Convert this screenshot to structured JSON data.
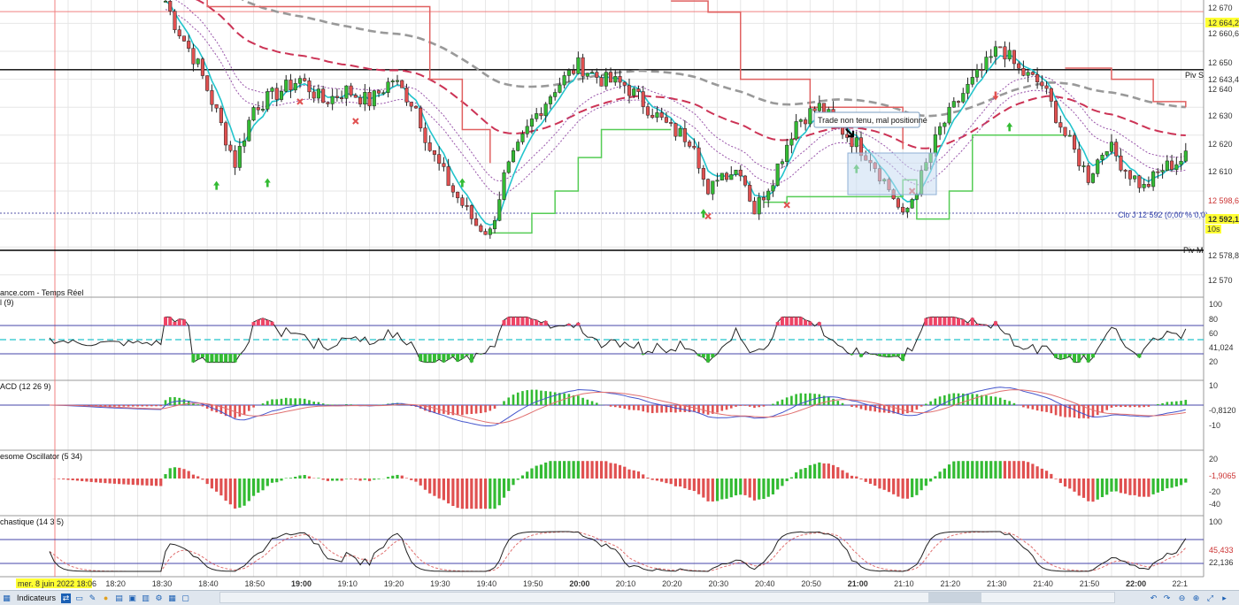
{
  "colors": {
    "bull": "#33bb33",
    "bear": "#e05050",
    "grid": "#e6e6e6",
    "ma_cyan": "#22c4cc",
    "ma_grey": "#999999",
    "ma_red": "#cc3355",
    "trail_red": "#e06060",
    "trail_green": "#55cc55"
  },
  "source_label": "ance.com - Temps Réel",
  "price_panel": {
    "axis_ticks": [
      "12 670",
      "12 660,6",
      "12 650",
      "12 643,4",
      "12 640",
      "12 630",
      "12 620",
      "12 610",
      "12 598,6",
      "12 592,1",
      "12 578,8",
      "12 570"
    ],
    "current_price": "12 592,1",
    "top_price_badge": "12 664,2",
    "timer_badge": "10s",
    "piv_s_label": "Piv S",
    "piv_m_label": "Piv M",
    "clo_label": "Clo J 12 592 (0,00 % 0,0)",
    "annotation": "Trade non tenu, mal positionné"
  },
  "panels": [
    {
      "name": "rsi",
      "label": "l (9)",
      "ticks": [
        "100",
        "80",
        "60",
        "41,024",
        "20"
      ]
    },
    {
      "name": "macd",
      "label": "ACD (12 26 9)",
      "ticks": [
        "10",
        "-0,8120",
        "-10"
      ]
    },
    {
      "name": "awesome",
      "label": "esome Oscillator (5 34)",
      "ticks": [
        "20",
        "-1,9065",
        "-20",
        "-40"
      ]
    },
    {
      "name": "stoch",
      "label": "chastique (14 3 5)",
      "ticks": [
        "100",
        "45,433",
        "22,136"
      ]
    }
  ],
  "time_axis": {
    "cursor_label": "mer. 8 juin 2022 18:06",
    "labels": [
      "18:20",
      "18:30",
      "18:40",
      "18:50",
      "19:00",
      "19:10",
      "19:20",
      "19:30",
      "19:40",
      "19:50",
      "20:00",
      "20:10",
      "20:20",
      "20:30",
      "20:40",
      "20:50",
      "21:00",
      "21:10",
      "21:20",
      "21:30",
      "21:40",
      "21:50",
      "22:00",
      "22:1"
    ]
  },
  "toolbar": {
    "indicators_label": "Indicateurs"
  },
  "chart_data": {
    "type": "candlestick",
    "x_range": [
      "18:06",
      "22:11"
    ],
    "ylim": [
      12570,
      12672
    ],
    "pivots": {
      "Piv S": 12643.4,
      "Piv M": 12578.8
    },
    "key_prices": [
      12664.2,
      12660.6,
      12643.4,
      12598.6,
      12592.1,
      12578.8
    ],
    "anchors": [
      [
        "18:31",
        12668
      ],
      [
        "18:33",
        12660
      ],
      [
        "18:38",
        12645
      ],
      [
        "18:42",
        12628
      ],
      [
        "18:46",
        12610
      ],
      [
        "18:50",
        12630
      ],
      [
        "18:56",
        12636
      ],
      [
        "19:00",
        12640
      ],
      [
        "19:05",
        12632
      ],
      [
        "19:10",
        12636
      ],
      [
        "19:15",
        12632
      ],
      [
        "19:20",
        12640
      ],
      [
        "19:25",
        12630
      ],
      [
        "19:28",
        12615
      ],
      [
        "19:33",
        12600
      ],
      [
        "19:38",
        12588
      ],
      [
        "19:41",
        12585
      ],
      [
        "19:44",
        12605
      ],
      [
        "19:50",
        12625
      ],
      [
        "19:55",
        12637
      ],
      [
        "20:00",
        12645
      ],
      [
        "20:05",
        12640
      ],
      [
        "20:10",
        12638
      ],
      [
        "20:15",
        12630
      ],
      [
        "20:20",
        12622
      ],
      [
        "20:25",
        12618
      ],
      [
        "20:28",
        12597
      ],
      [
        "20:30",
        12606
      ],
      [
        "20:35",
        12608
      ],
      [
        "20:38",
        12593
      ],
      [
        "20:42",
        12605
      ],
      [
        "20:47",
        12625
      ],
      [
        "20:52",
        12630
      ],
      [
        "20:58",
        12620
      ],
      [
        "21:03",
        12612
      ],
      [
        "21:08",
        12598
      ],
      [
        "21:10",
        12590
      ],
      [
        "21:14",
        12605
      ],
      [
        "21:18",
        12622
      ],
      [
        "21:23",
        12635
      ],
      [
        "21:28",
        12645
      ],
      [
        "21:31",
        12652
      ],
      [
        "21:35",
        12643
      ],
      [
        "21:40",
        12638
      ],
      [
        "21:45",
        12620
      ],
      [
        "21:50",
        12605
      ],
      [
        "21:54",
        12617
      ],
      [
        "21:58",
        12608
      ],
      [
        "22:02",
        12601
      ],
      [
        "22:06",
        12608
      ],
      [
        "22:11",
        12612
      ]
    ],
    "rsi_ylim": [
      0,
      100
    ],
    "rsi_last": 41.024,
    "macd_last": -0.812,
    "ao_last": -1.9065,
    "stoch_last": [
      45.433,
      22.136
    ]
  }
}
